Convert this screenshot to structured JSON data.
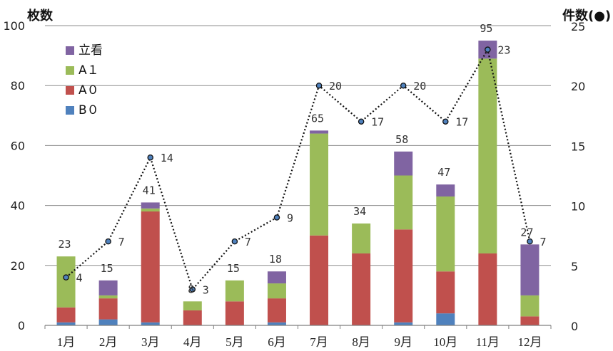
{
  "chart_data": {
    "type": "bar",
    "stacked": true,
    "categories": [
      "1月",
      "2月",
      "3月",
      "4月",
      "5月",
      "6月",
      "7月",
      "8月",
      "9月",
      "10月",
      "11月",
      "12月"
    ],
    "series": [
      {
        "name": "B０",
        "color": "#4f81bd",
        "values": [
          1,
          2,
          1,
          0,
          0,
          1,
          0,
          0,
          1,
          4,
          0,
          0
        ]
      },
      {
        "name": "A０",
        "color": "#c0504d",
        "values": [
          5,
          7,
          37,
          5,
          8,
          8,
          30,
          24,
          31,
          14,
          24,
          3
        ]
      },
      {
        "name": "A１",
        "color": "#9bbb59",
        "values": [
          17,
          1,
          1,
          3,
          7,
          5,
          34,
          10,
          18,
          25,
          65,
          7
        ]
      },
      {
        "name": "立看",
        "color": "#8064a2",
        "values": [
          0,
          5,
          2,
          0,
          0,
          4,
          1,
          0,
          8,
          4,
          6,
          17
        ]
      }
    ],
    "totals": [
      23,
      15,
      41,
      8,
      15,
      18,
      65,
      34,
      58,
      47,
      95,
      27
    ],
    "line": {
      "axis": "right",
      "values": [
        4,
        7,
        14,
        3,
        7,
        9,
        20,
        17,
        20,
        17,
        23,
        7
      ]
    },
    "ylabel": "枚数",
    "y2label": "件数(●)",
    "ylim": [
      0,
      100
    ],
    "y2lim": [
      0,
      25
    ],
    "yticks": [
      0,
      20,
      40,
      60,
      80,
      100
    ],
    "y2ticks": [
      0,
      5,
      10,
      15,
      20,
      25
    ],
    "grid": true,
    "legend_position": "top-left"
  }
}
